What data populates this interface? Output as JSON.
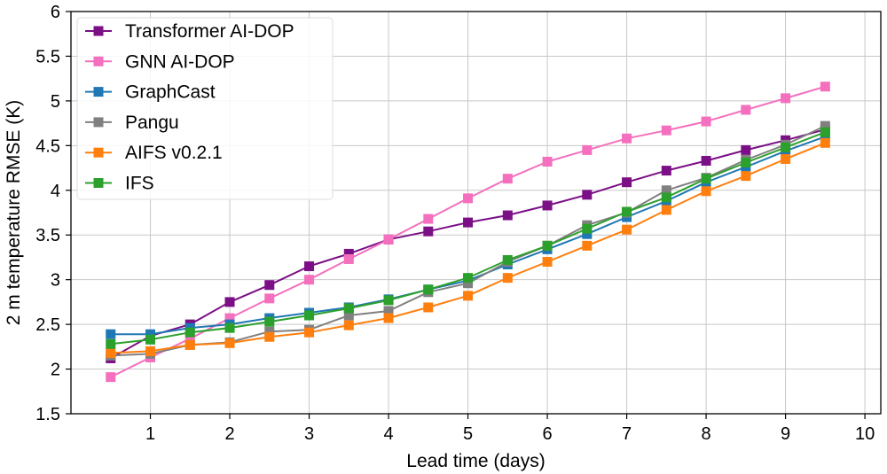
{
  "chart_data": {
    "type": "line",
    "xlabel": "Lead time (days)",
    "ylabel": "2 m temperature RMSE (K)",
    "xlim": [
      0,
      10.2
    ],
    "ylim": [
      1.5,
      6
    ],
    "xticks": [
      1,
      2,
      3,
      4,
      5,
      6,
      7,
      8,
      9,
      10
    ],
    "yticks": [
      1.5,
      2,
      2.5,
      3,
      3.5,
      4,
      4.5,
      5,
      5.5,
      6
    ],
    "ytick_labels": [
      "1.5",
      "2",
      "2.5",
      "3",
      "3.5",
      "4",
      "4.5",
      "5",
      "5.5",
      "6"
    ],
    "grid": true,
    "legend_position": "top-left",
    "marker": "square",
    "x": [
      0.5,
      1,
      1.5,
      2,
      2.5,
      3,
      3.5,
      4,
      4.5,
      5,
      5.5,
      6,
      6.5,
      7,
      7.5,
      8,
      8.5,
      9,
      9.5
    ],
    "series": [
      {
        "name": "Transformer AI-DOP",
        "color": "#7b0f86",
        "values": [
          2.12,
          2.37,
          2.5,
          2.75,
          2.94,
          3.15,
          3.29,
          3.45,
          3.54,
          3.64,
          3.72,
          3.83,
          3.95,
          4.09,
          4.22,
          4.33,
          4.45,
          4.56,
          4.68
        ]
      },
      {
        "name": "GNN AI-DOP",
        "color": "#f46fbd",
        "values": [
          1.91,
          2.13,
          2.34,
          2.57,
          2.79,
          3.0,
          3.23,
          3.45,
          3.68,
          3.91,
          4.13,
          4.32,
          4.45,
          4.58,
          4.67,
          4.77,
          4.9,
          5.03,
          5.16
        ]
      },
      {
        "name": "GraphCast",
        "color": "#1f77b4",
        "values": [
          2.39,
          2.39,
          2.46,
          2.5,
          2.57,
          2.63,
          2.69,
          2.78,
          2.89,
          2.99,
          3.17,
          3.34,
          3.51,
          3.7,
          3.88,
          4.09,
          4.26,
          4.44,
          4.6
        ]
      },
      {
        "name": "Pangu",
        "color": "#808080",
        "values": [
          2.15,
          2.17,
          2.27,
          2.3,
          2.42,
          2.44,
          2.6,
          2.65,
          2.86,
          2.96,
          3.2,
          3.38,
          3.61,
          3.75,
          4.0,
          4.14,
          4.34,
          4.51,
          4.72
        ]
      },
      {
        "name": "AIFS v0.2.1",
        "color": "#ff7f0e",
        "values": [
          2.18,
          2.2,
          2.27,
          2.29,
          2.36,
          2.41,
          2.49,
          2.57,
          2.69,
          2.82,
          3.02,
          3.2,
          3.38,
          3.56,
          3.78,
          3.99,
          4.16,
          4.35,
          4.53
        ]
      },
      {
        "name": "IFS",
        "color": "#2ca02c",
        "values": [
          2.28,
          2.33,
          2.41,
          2.46,
          2.53,
          2.6,
          2.68,
          2.77,
          2.89,
          3.02,
          3.22,
          3.38,
          3.57,
          3.76,
          3.92,
          4.13,
          4.31,
          4.48,
          4.65
        ]
      }
    ]
  }
}
